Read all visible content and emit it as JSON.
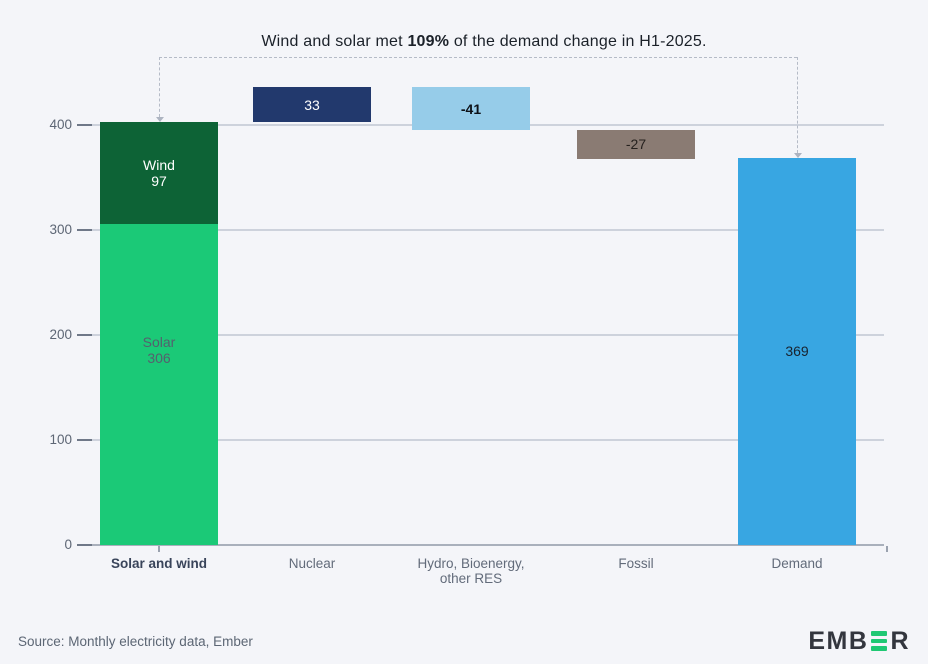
{
  "title": {
    "pre": "Wind and solar met ",
    "bold": "109%",
    "post": " of the demand change in H1-2025."
  },
  "x_axis": {
    "labels": [
      "Solar and wind",
      "Nuclear",
      "Hydro, Bioenergy,\nother RES",
      "Fossil",
      "Demand"
    ]
  },
  "footer": {
    "source": "Source: Monthly electricity data, Ember",
    "logo_pre": "EMB",
    "logo_post": "R",
    "logo_name": "EMBER"
  },
  "colors": {
    "background": "#f4f5f9",
    "solar": "#1bc977",
    "wind": "#0d6336",
    "nuclear": "#22396d",
    "hydro": "#96cce9",
    "fossil": "#8a7b73",
    "demand": "#38a6e2",
    "gridline": "#cdd2dc",
    "logo_green": "#1fc873"
  },
  "chart_data": {
    "type": "bar",
    "subtype": "waterfall",
    "title": "Wind and solar met 109% of the demand change in H1-2025.",
    "categories": [
      "Solar and wind",
      "Nuclear",
      "Hydro, Bioenergy, other RES",
      "Fossil",
      "Demand"
    ],
    "yticks": [
      0,
      100,
      200,
      300,
      400
    ],
    "ylim": [
      0,
      430
    ],
    "grid": true,
    "bars": [
      {
        "category": "Solar and wind",
        "stack": [
          {
            "name": "Solar",
            "value": 306,
            "display_value": "306",
            "color": "#1bc977",
            "label_color": "#55606e",
            "label_weight": "400"
          },
          {
            "name": "Wind",
            "value": 97,
            "display_value": "97",
            "color": "#0d6336",
            "label_color": "#ffffff",
            "label_weight": "400"
          }
        ],
        "total": 403
      },
      {
        "category": "Nuclear",
        "from": 403,
        "to": 436,
        "value": 33,
        "display_value": "33",
        "color": "#22396d",
        "label_color": "#ffffff",
        "label_weight": "400"
      },
      {
        "category": "Hydro, Bioenergy, other RES",
        "from": 395,
        "to": 436,
        "value": -41,
        "display_value": "-41",
        "color": "#96cce9",
        "label_color": "#0d1117",
        "label_weight": "700"
      },
      {
        "category": "Fossil",
        "from": 368,
        "to": 395,
        "value": -27,
        "display_value": "-27",
        "color": "#8a7b73",
        "label_color": "#26211e",
        "label_weight": "400"
      },
      {
        "category": "Demand",
        "from": 0,
        "to": 369,
        "value": 369,
        "display_value": "369",
        "color": "#38a6e2",
        "label_color": "#18222e",
        "label_weight": "400"
      }
    ],
    "annotation": {
      "text": "Wind and solar met 109% of the demand change in H1-2025.",
      "from_category": "Solar and wind",
      "to_category": "Demand"
    }
  }
}
